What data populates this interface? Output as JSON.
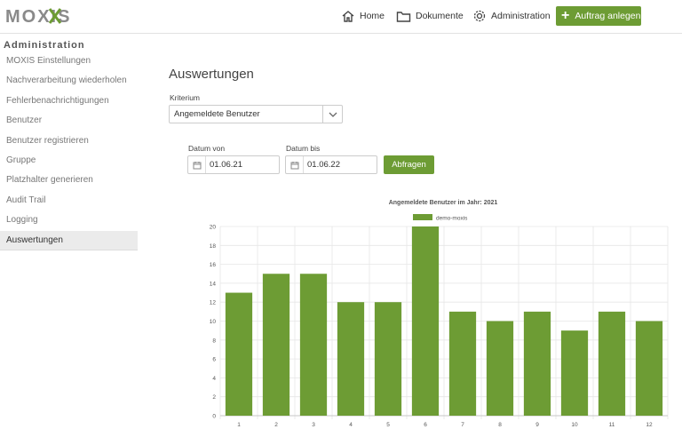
{
  "header": {
    "logo_text": "MOXIS",
    "nav": [
      {
        "label": "Home",
        "icon": "home-icon"
      },
      {
        "label": "Dokumente",
        "icon": "folder-icon"
      },
      {
        "label": "Administration",
        "icon": "gear-icon"
      }
    ],
    "cta_label": "Auftrag anlegen"
  },
  "sidebar": {
    "title": "Administration",
    "items": [
      {
        "label": "MOXIS Einstellungen"
      },
      {
        "label": "Nachverarbeitung wiederholen"
      },
      {
        "label": "Fehlerbenachrichtigungen"
      },
      {
        "label": "Benutzer"
      },
      {
        "label": "Benutzer registrieren"
      },
      {
        "label": "Gruppe"
      },
      {
        "label": "Platzhalter generieren"
      },
      {
        "label": "Audit Trail"
      },
      {
        "label": "Logging"
      },
      {
        "label": "Auswertungen"
      }
    ],
    "active_index": 9
  },
  "main": {
    "title": "Auswertungen",
    "criterion_label": "Kriterium",
    "criterion_value": "Angemeldete Benutzer",
    "date_from_label": "Datum von",
    "date_from_value": "01.06.21",
    "date_to_label": "Datum bis",
    "date_to_value": "01.06.22",
    "query_button": "Abfragen"
  },
  "colors": {
    "accent": "#6d9c34",
    "bar": "#6d9c34"
  },
  "chart_data": {
    "type": "bar",
    "title": "Angemeldete Benutzer im Jahr:  2021",
    "categories": [
      "1",
      "2",
      "3",
      "4",
      "5",
      "6",
      "7",
      "8",
      "9",
      "10",
      "11",
      "12"
    ],
    "series": [
      {
        "name": "demo-moxis",
        "values": [
          13,
          15,
          15,
          12,
          12,
          20,
          11,
          10,
          11,
          9,
          11,
          10
        ]
      }
    ],
    "ylim": [
      0,
      20
    ],
    "yticks": [
      0,
      2,
      4,
      6,
      8,
      10,
      12,
      14,
      16,
      18,
      20
    ],
    "legend": "top",
    "grid": true
  }
}
